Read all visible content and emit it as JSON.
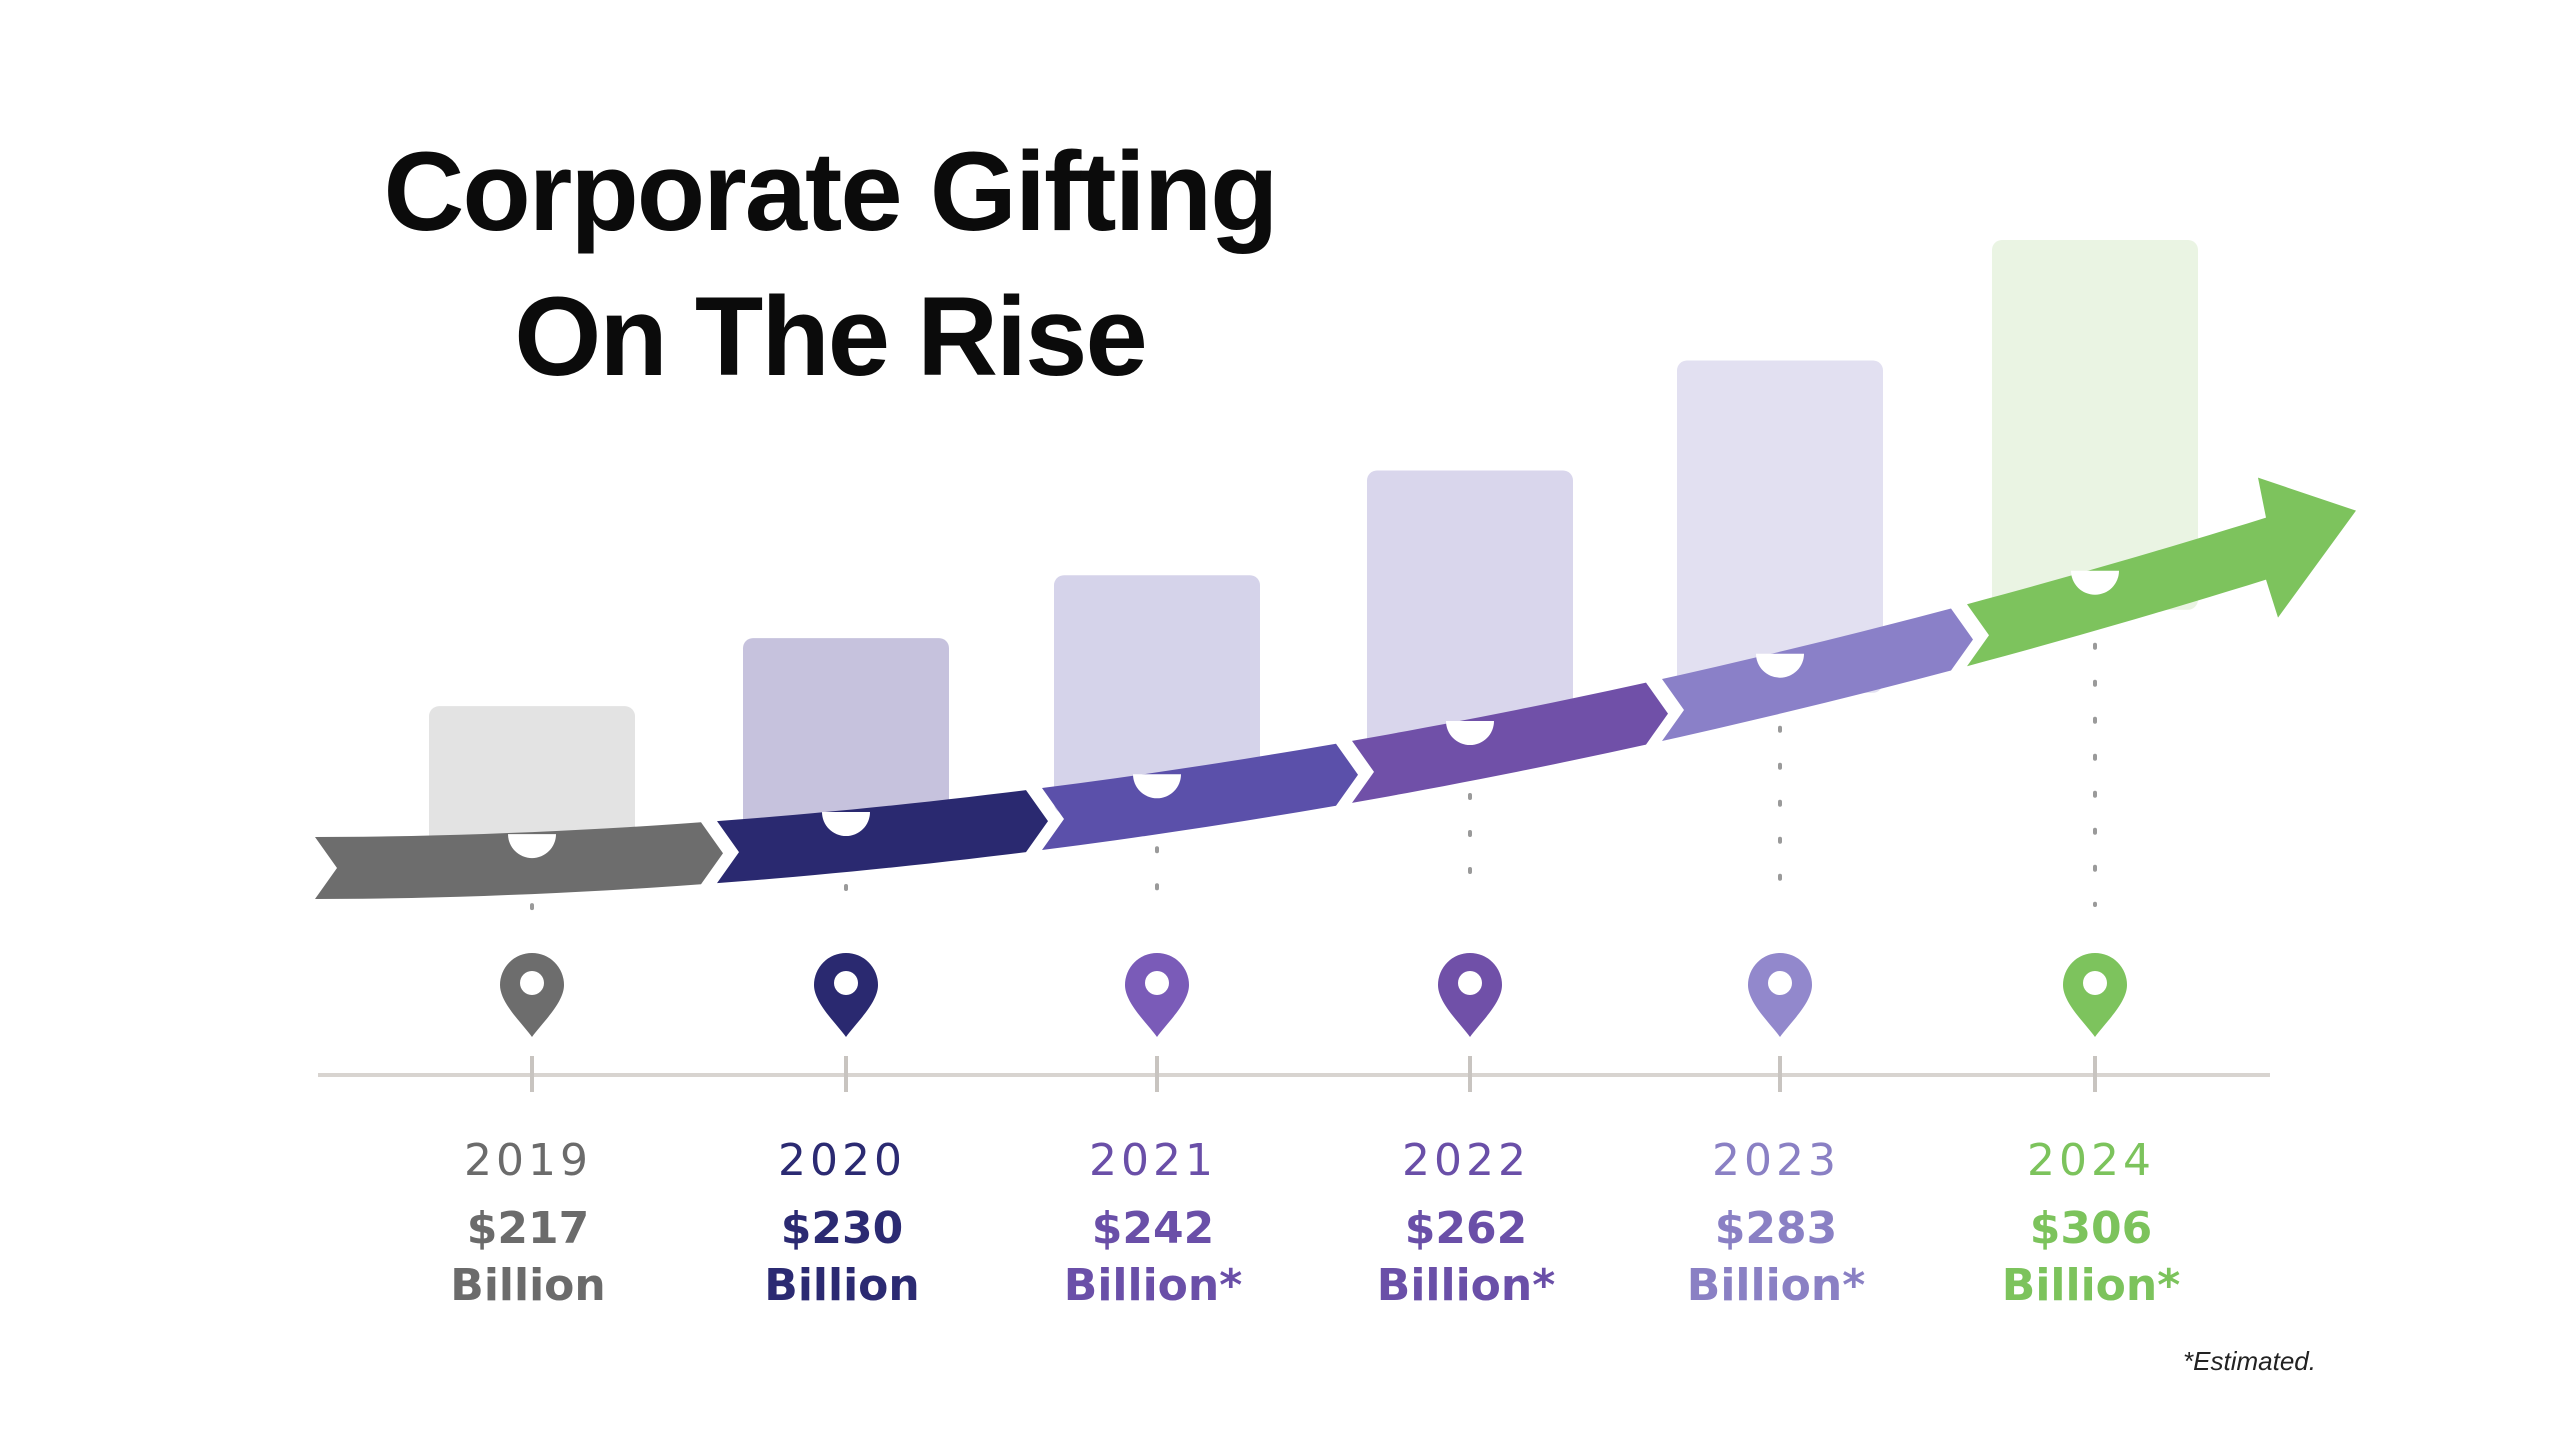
{
  "chart_data": {
    "type": "bar",
    "title_lines": [
      "Corporate Gifting",
      "On The Rise"
    ],
    "categories": [
      "2019",
      "2020",
      "2021",
      "2022",
      "2023",
      "2024"
    ],
    "values": [
      217,
      230,
      242,
      262,
      283,
      306
    ],
    "value_labels": [
      [
        "$217",
        "Billion"
      ],
      [
        "$230",
        "Billion"
      ],
      [
        "$242",
        "Billion*"
      ],
      [
        "$262",
        "Billion*"
      ],
      [
        "$283",
        "Billion*"
      ],
      [
        "$306",
        "Billion*"
      ]
    ],
    "estimated": [
      false,
      false,
      true,
      true,
      true,
      true
    ],
    "footnote": "*Estimated.",
    "ylim": [
      180,
      320
    ],
    "legend": "none",
    "grid": false,
    "colors": {
      "label": [
        "#6b6b6b",
        "#2b2a72",
        "#6a4fa8",
        "#6a4fa8",
        "#8a80c4",
        "#7cc35c"
      ],
      "bar": [
        "#e3e3e3",
        "#c6c2dd",
        "#d5d3ea",
        "#d9d6ec",
        "#e2e0f1",
        "#eaf4e3"
      ],
      "arrow": [
        "#6d6d6d",
        "#2a2970",
        "#5b50aa",
        "#7050a8",
        "#8a80c8",
        "#7dc35d"
      ],
      "pin": [
        "#6d6d6d",
        "#2a2970",
        "#7a5bb8",
        "#7050a8",
        "#9288cc",
        "#7dc35d"
      ],
      "axis": "#d8d4d0"
    }
  }
}
